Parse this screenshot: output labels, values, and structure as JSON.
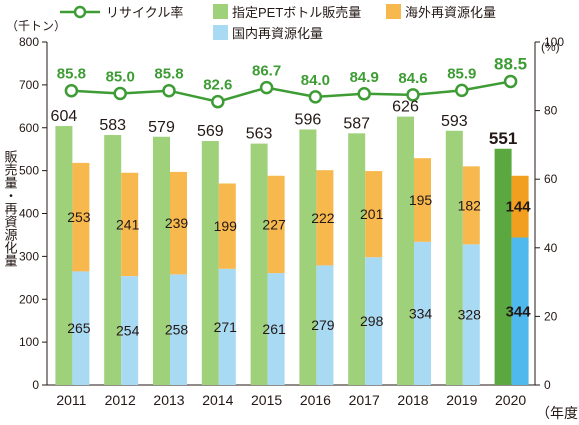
{
  "chart_data": {
    "type": "bar",
    "categories": [
      "2011",
      "2012",
      "2013",
      "2014",
      "2015",
      "2016",
      "2017",
      "2018",
      "2019",
      "2020"
    ],
    "x_unit_label": "（年度）",
    "left_axis": {
      "unit_label": "（千トン）",
      "label": "販売量・再資源化量",
      "ylim": [
        0,
        800
      ],
      "ticks": [
        "0",
        "100",
        "200",
        "300",
        "400",
        "500",
        "600",
        "700",
        "800"
      ]
    },
    "right_axis": {
      "unit_label": "(%)",
      "ylim": [
        0,
        100
      ],
      "ticks": [
        "0",
        "20",
        "40",
        "60",
        "80",
        "100"
      ]
    },
    "series": [
      {
        "name": "指定PETボトル販売量",
        "kind": "bar",
        "color": "#9fd07a",
        "highlight_color": "#5aa83f",
        "values": [
          604,
          583,
          579,
          569,
          563,
          596,
          587,
          626,
          593,
          551
        ]
      },
      {
        "name": "国内再資源化量",
        "kind": "stack-bottom",
        "color": "#a9daf4",
        "highlight_color": "#4fb8ec",
        "values": [
          265,
          254,
          258,
          271,
          261,
          279,
          298,
          334,
          328,
          344
        ]
      },
      {
        "name": "海外再資源化量",
        "kind": "stack-top",
        "color": "#f7b84e",
        "highlight_color": "#f29f1f",
        "values": [
          253,
          241,
          239,
          199,
          227,
          222,
          201,
          195,
          182,
          144
        ]
      },
      {
        "name": "リサイクル率",
        "kind": "line",
        "axis": "right",
        "color": "#3e9c35",
        "values": [
          85.8,
          85.0,
          85.8,
          82.6,
          86.7,
          84.0,
          84.9,
          84.6,
          85.9,
          88.5
        ],
        "value_labels": [
          "85.8",
          "85.0",
          "85.8",
          "82.6",
          "86.7",
          "84.0",
          "84.9",
          "84.6",
          "85.9",
          "88.5"
        ]
      }
    ],
    "highlight_category": "2020",
    "grid": false,
    "legend_position": "top"
  }
}
